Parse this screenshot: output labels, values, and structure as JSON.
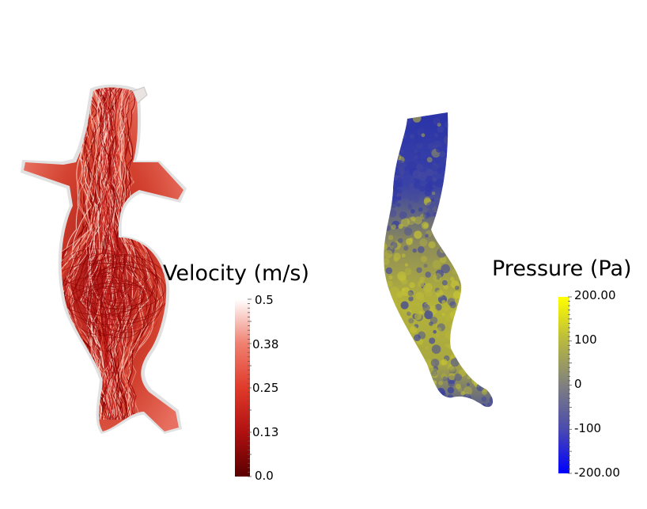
{
  "velocity_legend": {
    "title": "Velocity (m/s)",
    "ticks": [
      "0.5",
      "0.38",
      "0.25",
      "0.13",
      "0.0"
    ],
    "range": [
      0.0,
      0.5
    ],
    "colors": [
      "#5a0000",
      "#b01010",
      "#e03a2a",
      "#f08070",
      "#fbe0d8",
      "#ffffff"
    ]
  },
  "pressure_legend": {
    "title": "Pressure (Pa)",
    "ticks": [
      "200.00",
      "100",
      "0",
      "-100",
      "-200.00"
    ],
    "range": [
      -200,
      200
    ],
    "colors": [
      "#0000ff",
      "#4a4ab0",
      "#808080",
      "#b8b840",
      "#ffff00"
    ]
  },
  "velocity_model": {
    "streamline_colors": [
      "#8b0000",
      "#c41e1e",
      "#e0523a",
      "#f2a090",
      "#fbd7cc"
    ],
    "surface_color": "#dcdcdc"
  },
  "pressure_model": {
    "low_color": "#2a33a8",
    "high_color": "#b3b23a"
  }
}
